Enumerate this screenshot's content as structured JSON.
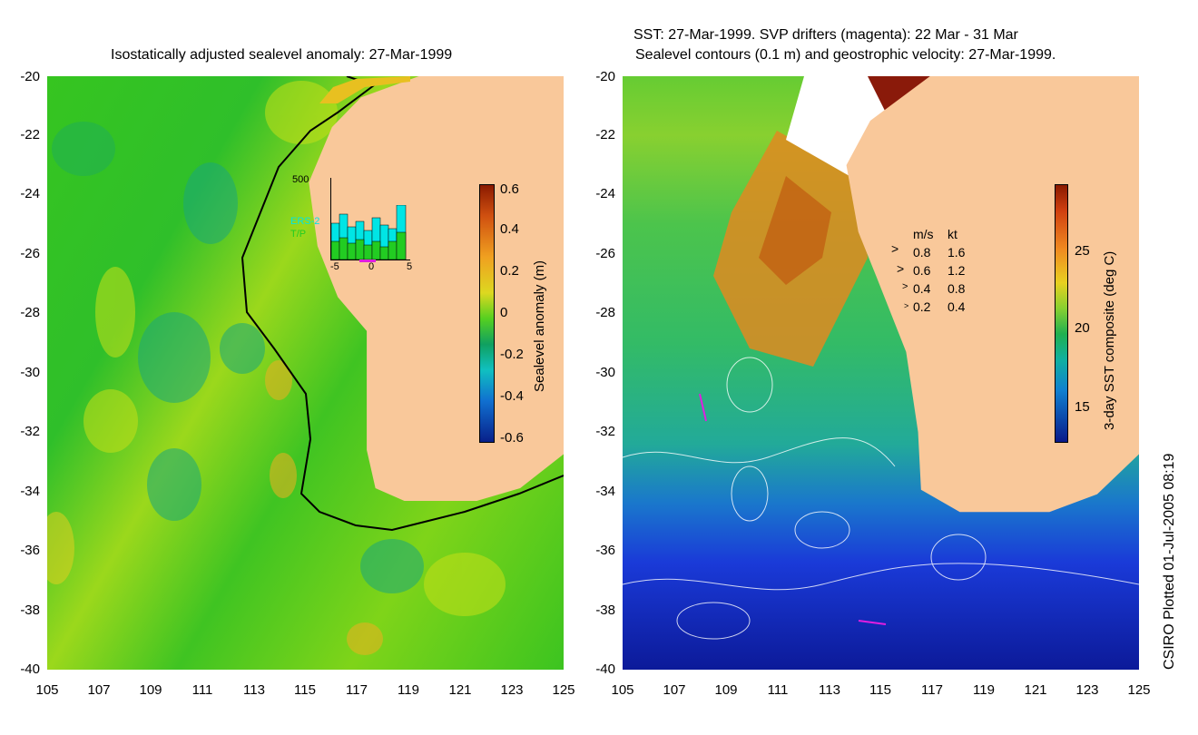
{
  "left_panel": {
    "title": "Isostatically adjusted sealevel anomaly: 27-Mar-1999",
    "colorbar_label": "Sealevel anomaly (m)",
    "colorbar_ticks": [
      "0.6",
      "0.4",
      "0.2",
      "0",
      "-0.2",
      "-0.4",
      "-0.6"
    ],
    "inset": {
      "ymax_label": "500",
      "series_labels": [
        "ERS-2",
        "T/P"
      ],
      "series_colors": [
        "#00e5e5",
        "#22cc22"
      ],
      "x_ticks": [
        "-5",
        "0",
        "5"
      ]
    }
  },
  "right_panel": {
    "title_line1": "SST: 27-Mar-1999. SVP drifters (magenta): 22 Mar - 31 Mar",
    "title_line2": "Sealevel contours (0.1 m) and geostrophic velocity: 27-Mar-1999.",
    "colorbar_label": "3-day SST composite (deg C)",
    "colorbar_ticks": [
      "25",
      "20",
      "15"
    ],
    "velocity_legend": {
      "header_ms": "m/s",
      "header_kt": "kt",
      "rows": [
        {
          "ms": "0.8",
          "kt": "1.6"
        },
        {
          "ms": "0.6",
          "kt": "1.2"
        },
        {
          "ms": "0.4",
          "kt": "0.8"
        },
        {
          "ms": "0.2",
          "kt": "0.4"
        }
      ]
    }
  },
  "axes": {
    "y_ticks": [
      "-20",
      "-22",
      "-24",
      "-26",
      "-28",
      "-30",
      "-32",
      "-34",
      "-36",
      "-38",
      "-40"
    ],
    "x_ticks": [
      "105",
      "107",
      "109",
      "111",
      "113",
      "115",
      "117",
      "119",
      "121",
      "123",
      "125"
    ]
  },
  "credit": "CSIRO Plotted 01-Jul-2005 08:19",
  "colors": {
    "land": "#f9c89a",
    "ocean_anomaly": "#33cc11",
    "drifter": "#e01ee0"
  }
}
